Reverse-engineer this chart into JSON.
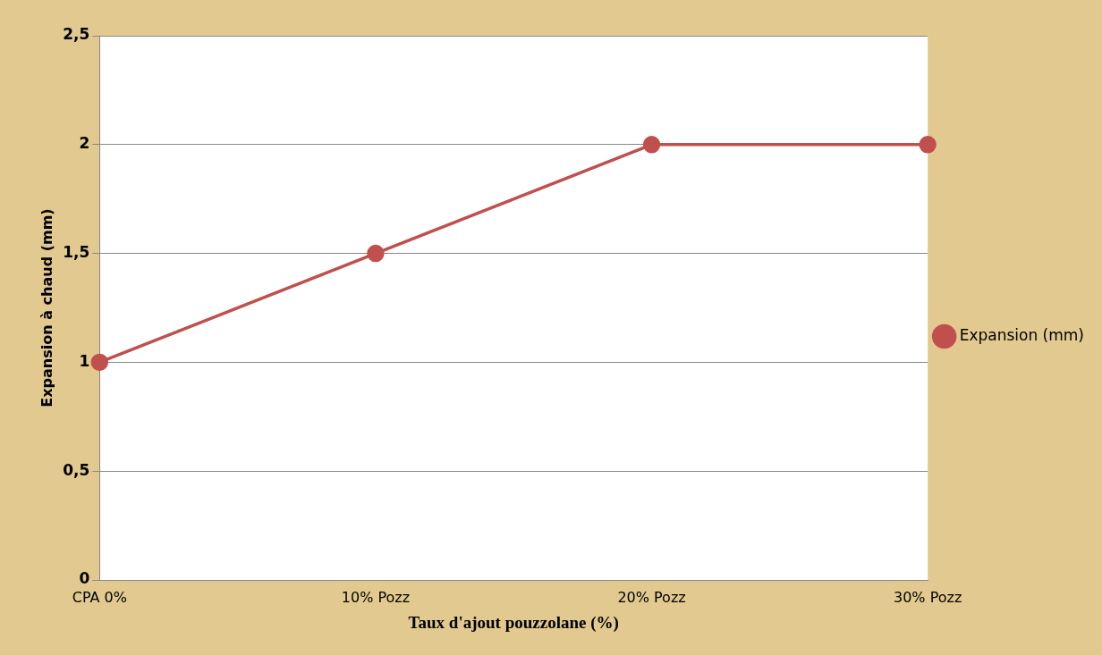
{
  "chart_data": {
    "type": "line",
    "xlabel": "Taux d'ajout pouzzolane (%)",
    "ylabel": "Expansion à chaud (mm)",
    "categories": [
      "CPA 0%",
      "10% Pozz",
      "20% Pozz",
      "30% Pozz"
    ],
    "series": [
      {
        "name": "Expansion (mm)",
        "color": "#c0504d",
        "values": [
          1,
          1.5,
          2,
          2
        ]
      }
    ],
    "ylim": [
      0,
      2.5
    ],
    "yticks": [
      {
        "value": 0,
        "label": "0"
      },
      {
        "value": 0.5,
        "label": "0,5"
      },
      {
        "value": 1,
        "label": "1"
      },
      {
        "value": 1.5,
        "label": "1,5"
      },
      {
        "value": 2,
        "label": "2"
      },
      {
        "value": 2.5,
        "label": "2,5"
      }
    ],
    "grid": "y",
    "legend": "right",
    "marker": "circle"
  }
}
